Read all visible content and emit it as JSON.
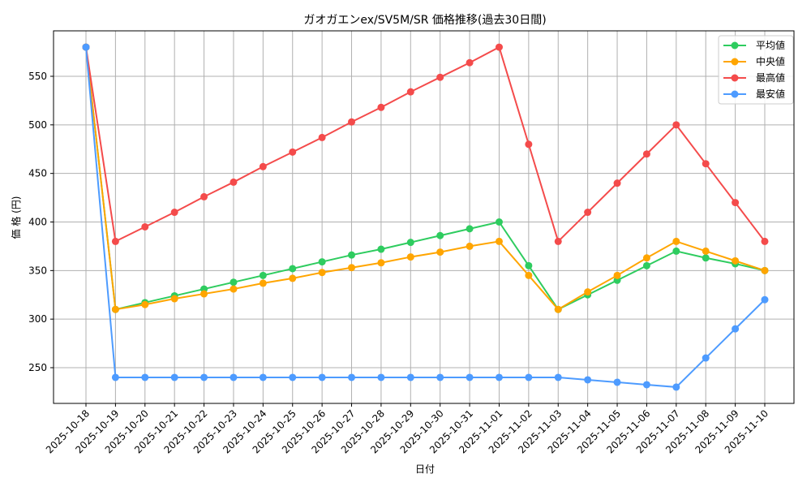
{
  "chart_data": {
    "type": "line",
    "title": "ガオガエンex/SV5M/SR 価格推移(過去30日間)",
    "xlabel": "日付",
    "ylabel": "価 格 (円)",
    "ylim": [
      213,
      598
    ],
    "yticks": [
      250,
      300,
      350,
      400,
      450,
      500,
      550
    ],
    "grid": true,
    "legend_position": "upper right",
    "x": [
      "2025-10-18",
      "2025-10-19",
      "2025-10-20",
      "2025-10-21",
      "2025-10-22",
      "2025-10-23",
      "2025-10-24",
      "2025-10-25",
      "2025-10-26",
      "2025-10-27",
      "2025-10-28",
      "2025-10-29",
      "2025-10-30",
      "2025-10-31",
      "2025-11-01",
      "2025-11-02",
      "2025-11-03",
      "2025-11-04",
      "2025-11-05",
      "2025-11-06",
      "2025-11-07",
      "2025-11-08",
      "2025-11-09",
      "2025-11-10"
    ],
    "series": [
      {
        "name": "平均値",
        "color": "#2ecc5f",
        "values": [
          580,
          310,
          317,
          324,
          331,
          338,
          345,
          352,
          359,
          366,
          372,
          379,
          386,
          393,
          400,
          355,
          310,
          325,
          340,
          355,
          370,
          363,
          357,
          350
        ]
      },
      {
        "name": "中央値",
        "color": "#ffa500",
        "values": [
          580,
          310,
          315,
          321,
          326,
          331,
          337,
          342,
          348,
          353,
          358,
          364,
          369,
          375,
          380,
          345,
          310,
          328,
          345,
          363,
          380,
          370,
          360,
          350
        ]
      },
      {
        "name": "最高値",
        "color": "#f44b4b",
        "values": [
          580,
          380,
          395,
          410,
          426,
          441,
          457,
          472,
          487,
          503,
          518,
          534,
          549,
          564,
          580,
          480,
          380,
          410,
          440,
          470,
          500,
          460,
          420,
          380
        ]
      },
      {
        "name": "最安値",
        "color": "#4d9bff",
        "values": [
          580,
          240,
          240,
          240,
          240,
          240,
          240,
          240,
          240,
          240,
          240,
          240,
          240,
          240,
          240,
          240,
          240,
          237.5,
          235,
          232.5,
          230,
          260,
          290,
          320
        ]
      }
    ]
  }
}
